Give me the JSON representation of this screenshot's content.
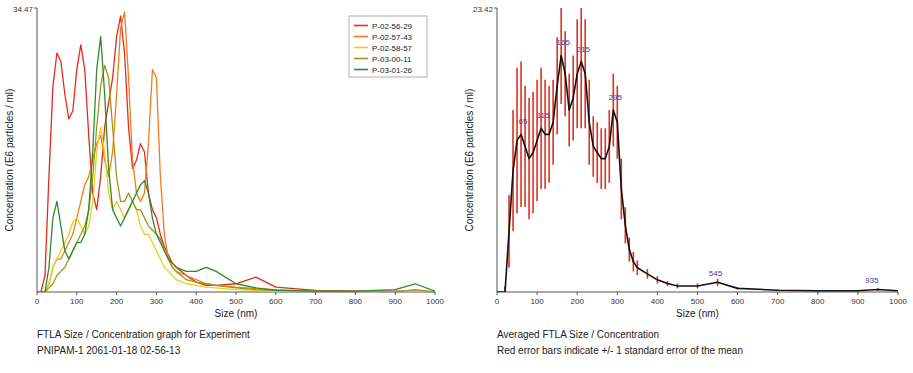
{
  "chart_data": [
    {
      "type": "line",
      "title": "FTLA Size / Concentration graph for Experiment",
      "subtitle": "PNIPAM-1 2061-01-18 02-56-13",
      "x_label": "Size (nm)",
      "y_label": "Concentration (E6 particles / ml)",
      "x": [
        0,
        10,
        20,
        30,
        40,
        50,
        60,
        70,
        80,
        90,
        100,
        110,
        120,
        130,
        140,
        150,
        160,
        170,
        180,
        190,
        200,
        210,
        220,
        230,
        240,
        250,
        260,
        270,
        280,
        290,
        300,
        310,
        320,
        330,
        340,
        350,
        375,
        400,
        425,
        450,
        500,
        550,
        600,
        700,
        800,
        900,
        950,
        1000
      ],
      "series": [
        {
          "name": "P-02-56-29",
          "color": "#e8291c",
          "values": [
            0,
            0,
            2,
            14,
            25,
            29,
            28,
            24,
            21,
            22,
            27,
            30,
            27,
            19,
            12,
            10,
            14,
            20,
            23,
            26,
            31,
            33.5,
            29,
            20,
            15,
            16,
            18,
            17,
            12,
            10,
            9,
            7,
            5.5,
            4.5,
            3.5,
            3,
            2,
            1.2,
            0.8,
            0.8,
            1,
            1.8,
            0.6,
            0.2,
            0.1,
            0.1,
            0.1,
            0
          ]
        },
        {
          "name": "P-02-57-43",
          "color": "#f07c1a",
          "values": [
            0,
            0,
            0,
            1,
            3,
            4,
            4,
            5,
            6,
            7,
            9,
            11,
            13,
            14,
            16,
            18,
            19,
            16,
            14,
            17,
            24,
            32,
            34,
            26,
            16,
            12,
            11,
            12,
            18,
            27,
            26,
            14,
            7,
            4,
            3,
            2.5,
            2,
            1.5,
            1,
            0.8,
            0.6,
            0.4,
            0.3,
            0.1,
            0,
            0,
            0,
            0
          ]
        },
        {
          "name": "P-02-58-57",
          "color": "#e6d21a",
          "values": [
            0,
            0,
            0,
            1,
            3,
            4,
            5,
            6,
            7,
            8.5,
            9,
            8,
            7,
            8,
            11,
            17,
            20,
            17,
            12,
            10,
            11,
            10,
            9,
            10,
            11,
            10,
            8,
            7,
            7,
            6,
            5,
            4,
            3,
            2.5,
            2,
            1.5,
            1,
            0.8,
            0.6,
            0.5,
            0.3,
            0.2,
            0.1,
            0,
            0,
            0,
            0,
            0
          ]
        },
        {
          "name": "P-03-00-11",
          "color": "#9a9a1a",
          "values": [
            0,
            0,
            0,
            0.5,
            1,
            2,
            2.5,
            3,
            4,
            5,
            6,
            7,
            8,
            10,
            14,
            20,
            25,
            27.5,
            26,
            20,
            14,
            11,
            11,
            12,
            11,
            10,
            10,
            9,
            8,
            7.5,
            7,
            6.5,
            5,
            4,
            3,
            2.5,
            1.5,
            1.2,
            1,
            0.8,
            0.5,
            0.3,
            0.2,
            0.1,
            0,
            0,
            0.3,
            0
          ]
        },
        {
          "name": "P-03-01-26",
          "color": "#2e8b2e",
          "values": [
            0,
            0,
            0,
            3,
            9,
            11,
            8,
            5,
            4,
            5,
            6,
            6,
            7,
            10,
            17,
            27,
            31,
            24,
            15,
            10,
            9,
            8,
            9,
            10,
            11,
            12,
            13,
            13.5,
            12,
            9,
            7,
            6,
            5,
            4,
            3.5,
            3,
            2.5,
            2.5,
            3,
            2.5,
            1,
            0.5,
            0.2,
            0.1,
            0.1,
            0.3,
            1,
            0.1
          ]
        }
      ],
      "xlim": [
        0,
        1000
      ],
      "ylim": [
        0,
        34.47
      ],
      "xticks": [
        0,
        100,
        200,
        300,
        400,
        500,
        600,
        700,
        800,
        900,
        1000
      ],
      "yticks": [
        34.47
      ],
      "legend": "upper right"
    },
    {
      "type": "line",
      "title": "Averaged FTLA Size / Concentration",
      "subtitle": "Red error bars indicate +/- 1 standard error of the mean",
      "x_label": "Size (nm)",
      "y_label": "Concentration (E6 particles / ml)",
      "x": [
        0,
        10,
        20,
        30,
        40,
        50,
        60,
        70,
        80,
        90,
        100,
        110,
        120,
        130,
        140,
        150,
        160,
        170,
        180,
        190,
        200,
        210,
        220,
        230,
        240,
        250,
        260,
        270,
        280,
        290,
        300,
        310,
        320,
        330,
        340,
        350,
        375,
        400,
        425,
        450,
        500,
        550,
        600,
        700,
        800,
        900,
        950,
        1000
      ],
      "series": [
        {
          "color": "#111111",
          "values": [
            0,
            0,
            0,
            5,
            10,
            12.5,
            13,
            12,
            11,
            11.5,
            12.5,
            13.5,
            13,
            13,
            14,
            17,
            19.5,
            18,
            15,
            16,
            18,
            19,
            18,
            14,
            12,
            11.5,
            11,
            11,
            12,
            15,
            14,
            8.5,
            5.5,
            3.5,
            2.5,
            2,
            1.5,
            1,
            0.7,
            0.5,
            0.5,
            0.8,
            0.3,
            0.15,
            0.1,
            0.1,
            0.2,
            0.1
          ],
          "errors": [
            0,
            0,
            0.5,
            3,
            5,
            6,
            6,
            5,
            5,
            5,
            5,
            5,
            4.5,
            4,
            3.5,
            4,
            4,
            3.5,
            3,
            3.5,
            4.5,
            5.5,
            4.5,
            3.5,
            2.5,
            2.5,
            2.5,
            2.5,
            3,
            3,
            3,
            2.5,
            1.5,
            1,
            0.8,
            0.6,
            0.4,
            0.3,
            0.2,
            0.2,
            0.2,
            0.3,
            0.1,
            0.05,
            0.05,
            0.05,
            0.1,
            0.05
          ]
        }
      ],
      "annotations": [
        {
          "x": 65,
          "y": 13.5
        },
        {
          "x": 115,
          "y": 14
        },
        {
          "x": 165,
          "y": 20
        },
        {
          "x": 215,
          "y": 19.5
        },
        {
          "x": 295,
          "y": 15.5
        },
        {
          "x": 545,
          "y": 1
        },
        {
          "x": 935,
          "y": 0.4
        }
      ],
      "xlim": [
        0,
        1000
      ],
      "ylim": [
        0,
        23.42
      ],
      "xticks": [
        0,
        100,
        200,
        300,
        400,
        500,
        600,
        700,
        800,
        900,
        1000
      ],
      "yticks": [
        23.42
      ]
    }
  ]
}
